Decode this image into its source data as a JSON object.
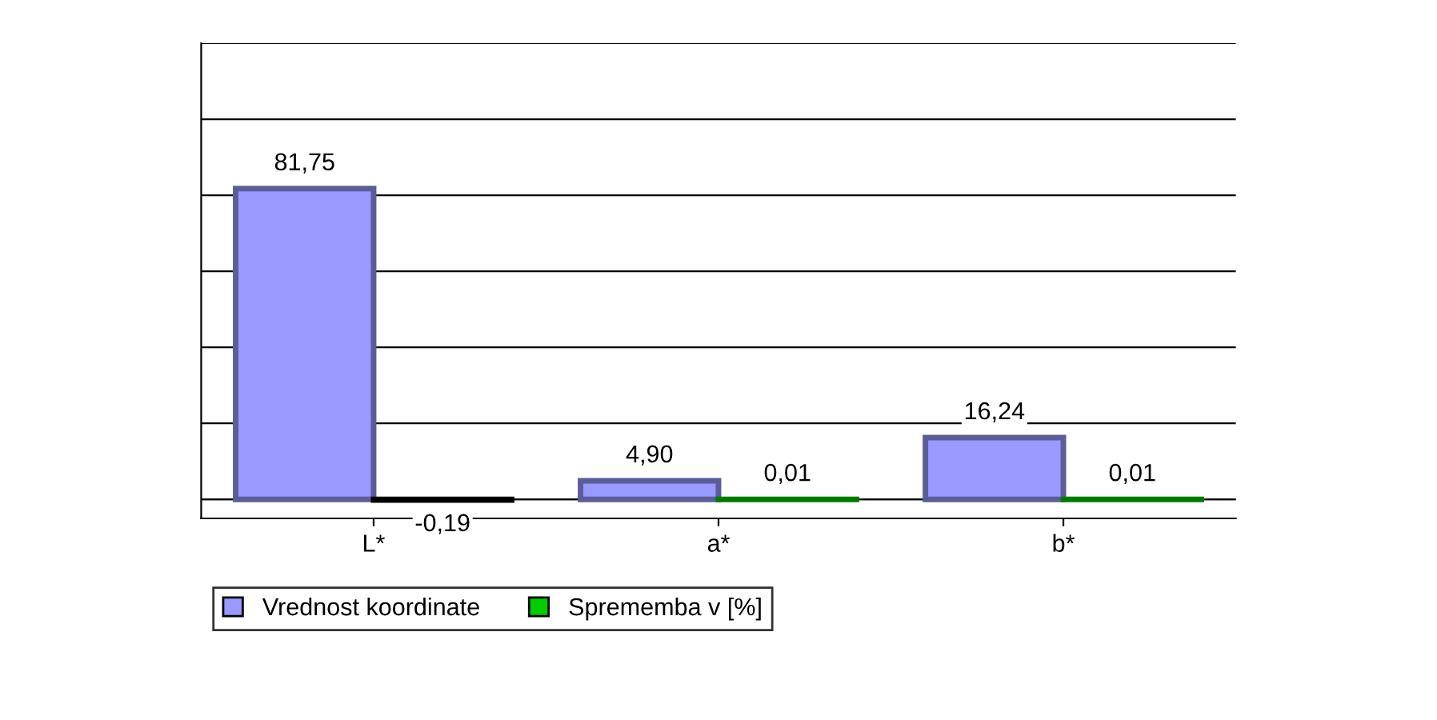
{
  "chart_data": {
    "type": "bar",
    "categories": [
      "L*",
      "a*",
      "b*"
    ],
    "series": [
      {
        "name": "Vrednost koordinate",
        "color": "#9999ff",
        "values": [
          81.75,
          4.9,
          16.24
        ],
        "value_labels": [
          "81,75",
          "4,90",
          "16,24"
        ]
      },
      {
        "name": "Sprememba v [%]",
        "color": "#00cc00",
        "colors": [
          "#000000",
          "#00cc00",
          "#00cc00"
        ],
        "values": [
          -0.19,
          0.01,
          0.01
        ],
        "value_labels": [
          "-0,19",
          "0,01",
          "0,01"
        ]
      }
    ],
    "ylim": [
      -5,
      120
    ],
    "yticks": [
      {
        "value": 0,
        "label": null
      },
      {
        "value": 20,
        "label": null
      },
      {
        "value": 40,
        "label": null
      },
      {
        "value": 60,
        "label": null
      },
      {
        "value": 80,
        "label": null
      },
      {
        "value": 100,
        "label": null
      },
      {
        "value": 120,
        "label": null
      }
    ],
    "grid": "y",
    "legend": "bottom left"
  }
}
